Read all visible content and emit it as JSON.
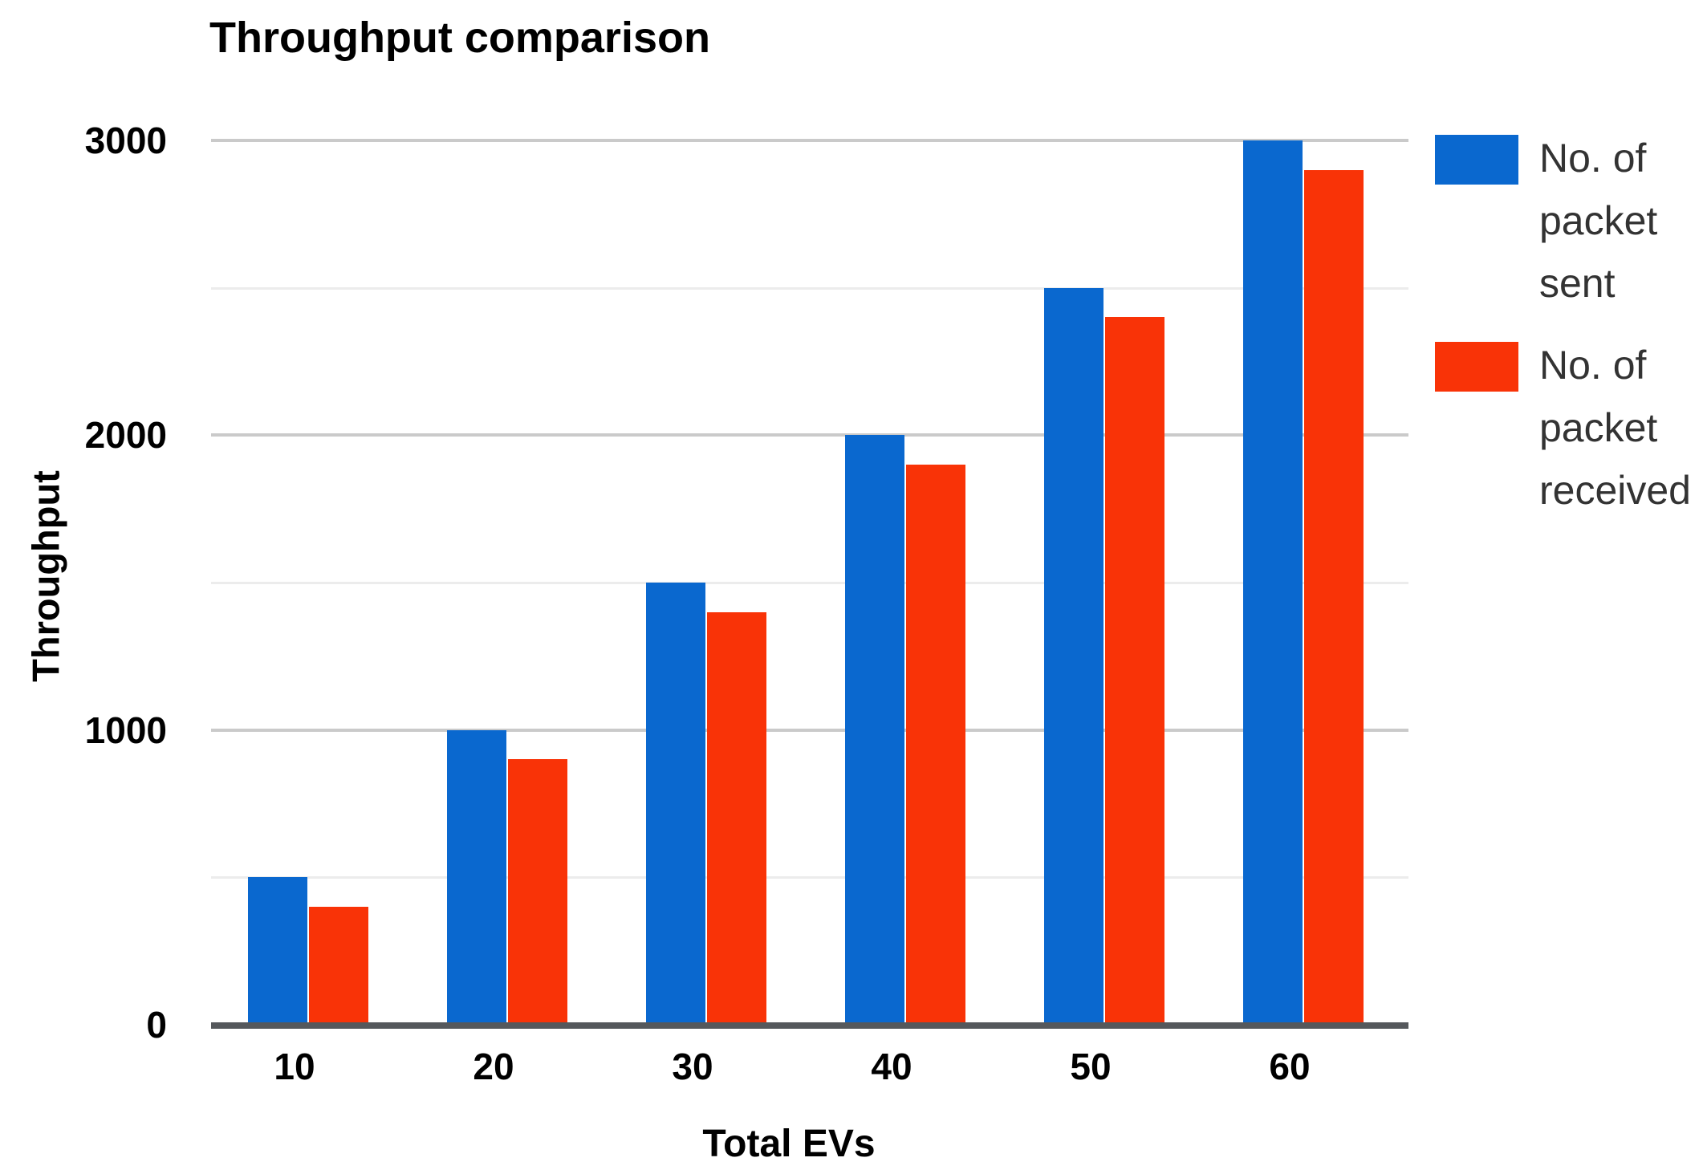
{
  "chart_data": {
    "type": "bar",
    "title": "Throughput comparison",
    "xlabel": "Total EVs",
    "ylabel": "Throughput",
    "categories": [
      "10",
      "20",
      "30",
      "40",
      "50",
      "60"
    ],
    "series": [
      {
        "name": "No. of packet sent",
        "color": "#0a68cf",
        "values": [
          500,
          1000,
          1500,
          2000,
          2500,
          3000
        ]
      },
      {
        "name": "No. of packet received",
        "color": "#f93307",
        "values": [
          400,
          900,
          1400,
          1900,
          2400,
          2900
        ]
      }
    ],
    "ylim": [
      0,
      3000
    ],
    "yticks_labeled": [
      0,
      1000,
      2000,
      3000
    ],
    "ytick_minor_step": 500,
    "grid": "horizontal",
    "legend_position": "right"
  },
  "colors": {
    "series_sent": "#0a68cf",
    "series_received": "#f93307",
    "grid_major": "#cacaca",
    "grid_minor": "#ececec",
    "axis_line": "#55585c",
    "text": "#000000",
    "legend_text": "#333333",
    "background": "#ffffff"
  }
}
